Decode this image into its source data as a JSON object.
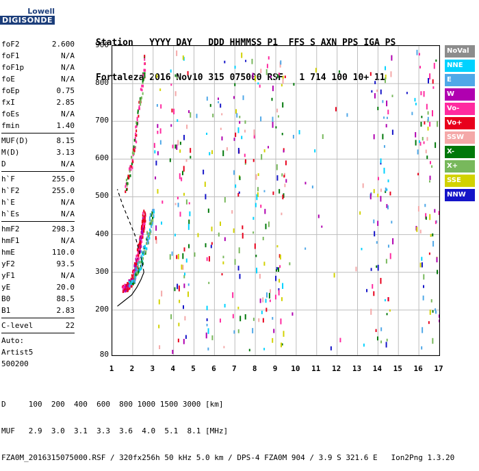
{
  "logo": {
    "line1": "Lowell",
    "line2": "DIGISONDE"
  },
  "header": {
    "line1": "Station   YYYY DAY   DDD HHMMSS P1  FFS S AXN PPS IGA PS",
    "line2": "Fortaleza 2016 Nov10 315 075000 RSF   1 714 100 10+ 11"
  },
  "params": {
    "group1": [
      {
        "label": "foF2",
        "value": "2.600"
      },
      {
        "label": "foF1",
        "value": "N/A"
      },
      {
        "label": "foF1p",
        "value": "N/A"
      },
      {
        "label": "foE",
        "value": "N/A"
      },
      {
        "label": "foEp",
        "value": "0.75"
      },
      {
        "label": "fxI",
        "value": "2.85"
      },
      {
        "label": "foEs",
        "value": "N/A"
      },
      {
        "label": "fmin",
        "value": "1.40"
      }
    ],
    "group2": [
      {
        "label": "MUF(D)",
        "value": "8.15"
      },
      {
        "label": "M(D)",
        "value": "3.13"
      },
      {
        "label": "D",
        "value": "N/A"
      }
    ],
    "group3": [
      {
        "label": "h`F",
        "value": "255.0"
      },
      {
        "label": "h`F2",
        "value": "255.0"
      },
      {
        "label": "h`E",
        "value": "N/A"
      },
      {
        "label": "h`Es",
        "value": "N/A"
      }
    ],
    "group4": [
      {
        "label": "hmF2",
        "value": "298.3"
      },
      {
        "label": "hmF1",
        "value": "N/A"
      },
      {
        "label": "hmE",
        "value": "110.0"
      },
      {
        "label": "yF2",
        "value": "93.5"
      },
      {
        "label": "yF1",
        "value": "N/A"
      },
      {
        "label": "yE",
        "value": "20.0"
      },
      {
        "label": "B0",
        "value": "88.5"
      },
      {
        "label": "B1",
        "value": "2.83"
      }
    ],
    "group5": [
      {
        "label": "C-level",
        "value": "22"
      }
    ],
    "auto": [
      "Auto:",
      "Artist5",
      "500200"
    ]
  },
  "legend": [
    {
      "label": "NoVal",
      "color": "#8c8c8c"
    },
    {
      "label": "NNE",
      "color": "#00d2ff"
    },
    {
      "label": "E",
      "color": "#4fa8e8"
    },
    {
      "label": "W",
      "color": "#b000b0"
    },
    {
      "label": "Vo-",
      "color": "#ff2aa0"
    },
    {
      "label": "Vo+",
      "color": "#e8001c"
    },
    {
      "label": "SSW",
      "color": "#f4a8a8"
    },
    {
      "label": "X-",
      "color": "#00780a"
    },
    {
      "label": "X+",
      "color": "#78b85c"
    },
    {
      "label": "SSE",
      "color": "#d2d200"
    },
    {
      "label": "NNW",
      "color": "#1414c8"
    }
  ],
  "chart_data": {
    "type": "scatter",
    "xlim": [
      1,
      17
    ],
    "ylim": [
      80,
      900
    ],
    "x_ticks": [
      "1",
      "2",
      "3",
      "4",
      "5",
      "6",
      "7",
      "8",
      "9",
      "10",
      "11",
      "12",
      "13",
      "14",
      "15",
      "16",
      "17"
    ],
    "y_ticks": [
      "80",
      "200",
      "300",
      "400",
      "500",
      "600",
      "700",
      "800",
      "900"
    ],
    "y_tick_values": [
      80,
      200,
      300,
      400,
      500,
      600,
      700,
      800,
      900
    ],
    "grid": true,
    "trace_o": [
      [
        1.5,
        260
      ],
      [
        1.7,
        265
      ],
      [
        1.9,
        275
      ],
      [
        2.0,
        290
      ],
      [
        2.1,
        310
      ],
      [
        2.2,
        340
      ],
      [
        2.3,
        370
      ],
      [
        2.4,
        400
      ],
      [
        2.5,
        430
      ],
      [
        2.55,
        460
      ]
    ],
    "trace_x": [
      [
        1.8,
        270
      ],
      [
        2.1,
        290
      ],
      [
        2.3,
        320
      ],
      [
        2.5,
        355
      ],
      [
        2.7,
        390
      ],
      [
        2.85,
        430
      ],
      [
        2.95,
        470
      ]
    ],
    "trace_2hop": [
      [
        1.6,
        520
      ],
      [
        1.8,
        560
      ],
      [
        1.95,
        600
      ],
      [
        2.1,
        650
      ],
      [
        2.2,
        700
      ],
      [
        2.35,
        760
      ],
      [
        2.5,
        820
      ],
      [
        2.6,
        880
      ]
    ],
    "profile_solid": [
      [
        1.25,
        210
      ],
      [
        1.6,
        225
      ],
      [
        1.95,
        240
      ],
      [
        2.2,
        260
      ],
      [
        2.4,
        280
      ],
      [
        2.55,
        300
      ]
    ],
    "profile_dashed": [
      [
        2.55,
        300
      ],
      [
        2.45,
        330
      ],
      [
        2.3,
        360
      ],
      [
        2.1,
        400
      ],
      [
        1.8,
        440
      ],
      [
        1.5,
        480
      ],
      [
        1.25,
        520
      ]
    ]
  },
  "bottom": {
    "line1": "D     100  200  400  600  800 1000 1500 3000 [km]",
    "line2": "MUF   2.9  3.0  3.1  3.3  3.6  4.0  5.1  8.1 [MHz]",
    "line3": "FZA0M_2016315075000.RSF / 320fx256h 50 kHz 5.0 km / DPS-4 FZA0M 904 / 3.9 S 321.6 E   Ion2Png 1.3.20"
  }
}
